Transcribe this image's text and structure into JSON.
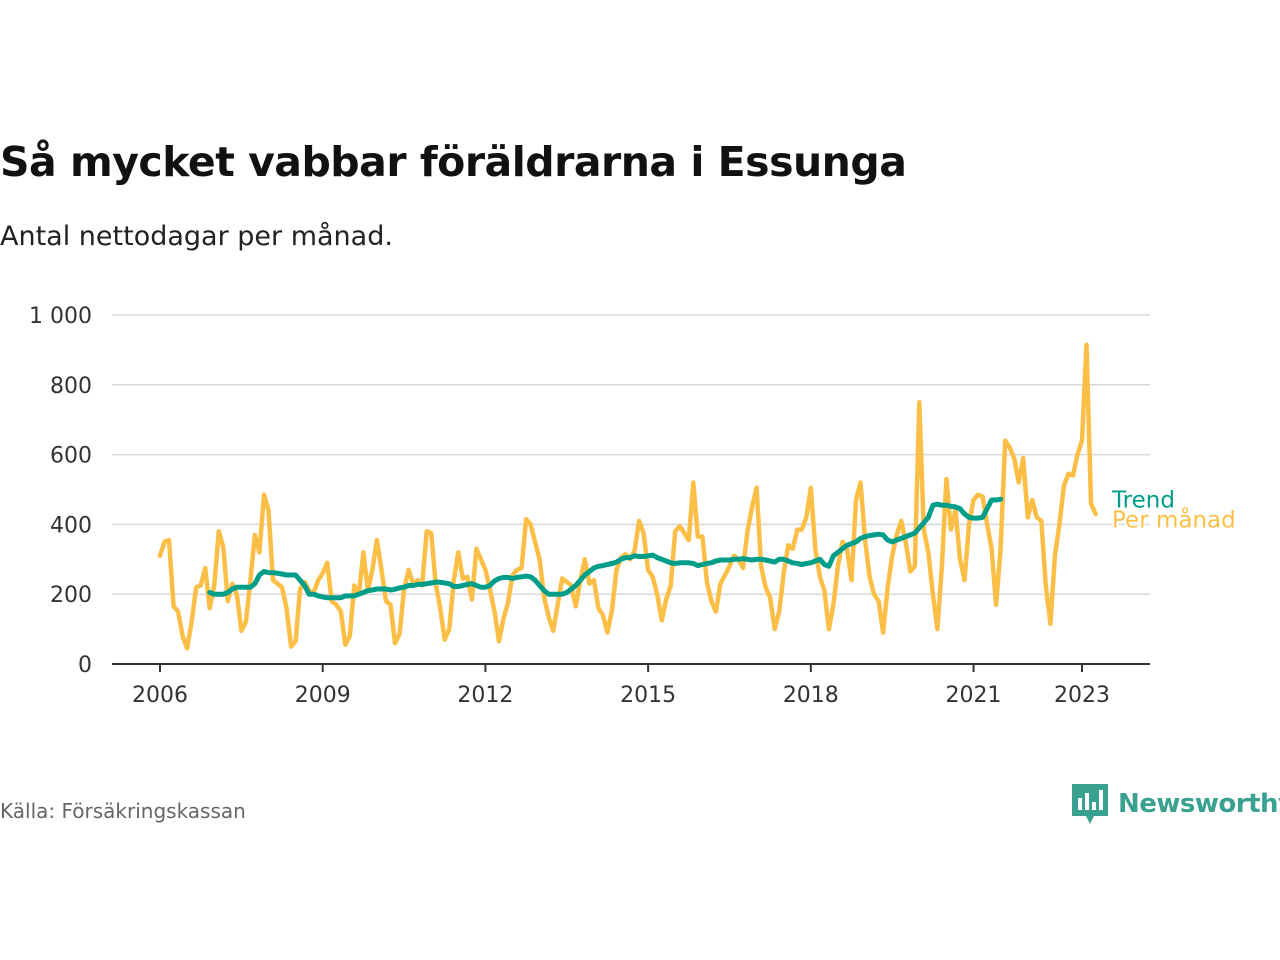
{
  "title": "Så mycket vabbar föräldrarna i Essunga",
  "subtitle": "Antal nettodagar per månad.",
  "source": "Källa: Försäkringskassan",
  "brand": {
    "name": "Newsworthy",
    "icon": "newsworthy-logo-icon",
    "color": "#3aa08f"
  },
  "chart_data": {
    "type": "line",
    "ylim": [
      0,
      1000
    ],
    "y_ticks": [
      0,
      200,
      400,
      600,
      800,
      1000
    ],
    "y_tick_labels": [
      "0",
      "200",
      "400",
      "600",
      "800",
      "1 000"
    ],
    "x_ticks": [
      "2006",
      "2009",
      "2012",
      "2015",
      "2018",
      "2021",
      "2023"
    ],
    "grid": true,
    "legend": "end-of-line labels",
    "x_start": "2006-01",
    "series": [
      {
        "name": "Per månad",
        "color": "#fbbf47",
        "values": [
          310,
          350,
          355,
          165,
          150,
          80,
          45,
          120,
          220,
          225,
          275,
          160,
          225,
          380,
          335,
          180,
          230,
          200,
          95,
          120,
          240,
          370,
          320,
          485,
          440,
          240,
          230,
          220,
          160,
          50,
          65,
          215,
          235,
          210,
          205,
          240,
          260,
          290,
          180,
          170,
          150,
          55,
          80,
          225,
          200,
          320,
          210,
          270,
          355,
          270,
          180,
          170,
          60,
          85,
          215,
          270,
          230,
          240,
          225,
          380,
          375,
          230,
          160,
          70,
          100,
          240,
          320,
          245,
          250,
          185,
          330,
          300,
          270,
          215,
          150,
          65,
          130,
          175,
          255,
          270,
          275,
          415,
          400,
          350,
          300,
          190,
          135,
          95,
          170,
          245,
          235,
          225,
          165,
          240,
          300,
          230,
          240,
          160,
          140,
          90,
          155,
          270,
          305,
          315,
          300,
          325,
          410,
          375,
          270,
          250,
          200,
          125,
          185,
          225,
          380,
          395,
          375,
          355,
          520,
          365,
          365,
          235,
          180,
          150,
          230,
          255,
          280,
          310,
          300,
          275,
          380,
          450,
          505,
          280,
          220,
          190,
          100,
          150,
          260,
          340,
          330,
          385,
          385,
          420,
          505,
          330,
          250,
          210,
          100,
          170,
          280,
          350,
          330,
          240,
          470,
          520,
          355,
          250,
          200,
          180,
          90,
          220,
          310,
          370,
          410,
          350,
          265,
          280,
          750,
          385,
          320,
          200,
          100,
          280,
          530,
          385,
          440,
          300,
          240,
          400,
          470,
          485,
          480,
          400,
          330,
          170,
          330,
          640,
          620,
          590,
          520,
          590,
          420,
          470,
          420,
          410,
          225,
          115,
          310,
          400,
          510,
          545,
          540,
          600,
          640,
          915,
          460,
          430
        ]
      },
      {
        "name": "Trend",
        "color": "#009e89",
        "x_start": "2006-12",
        "values": [
          205,
          200,
          200,
          200,
          205,
          215,
          220,
          220,
          220,
          220,
          230,
          255,
          265,
          262,
          262,
          260,
          258,
          255,
          255,
          255,
          240,
          225,
          200,
          200,
          195,
          192,
          190,
          190,
          190,
          190,
          195,
          195,
          195,
          200,
          205,
          210,
          212,
          215,
          215,
          215,
          212,
          214,
          218,
          220,
          225,
          225,
          228,
          228,
          230,
          232,
          235,
          234,
          232,
          230,
          222,
          222,
          225,
          228,
          230,
          225,
          220,
          220,
          225,
          238,
          245,
          248,
          248,
          245,
          248,
          250,
          252,
          250,
          240,
          225,
          210,
          200,
          200,
          200,
          200,
          205,
          215,
          225,
          240,
          255,
          265,
          275,
          280,
          282,
          285,
          288,
          292,
          300,
          305,
          305,
          310,
          308,
          308,
          310,
          312,
          305,
          300,
          295,
          290,
          288,
          290,
          290,
          290,
          288,
          282,
          285,
          288,
          290,
          295,
          298,
          298,
          298,
          300,
          300,
          302,
          300,
          298,
          300,
          300,
          298,
          295,
          292,
          300,
          300,
          295,
          290,
          288,
          285,
          288,
          290,
          295,
          300,
          285,
          280,
          310,
          320,
          330,
          340,
          345,
          350,
          360,
          365,
          368,
          370,
          372,
          370,
          355,
          350,
          355,
          360,
          365,
          370,
          375,
          390,
          405,
          420,
          455,
          458,
          455,
          455,
          452,
          450,
          445,
          430,
          420,
          418,
          418,
          420,
          445,
          470,
          470,
          472
        ]
      }
    ]
  }
}
